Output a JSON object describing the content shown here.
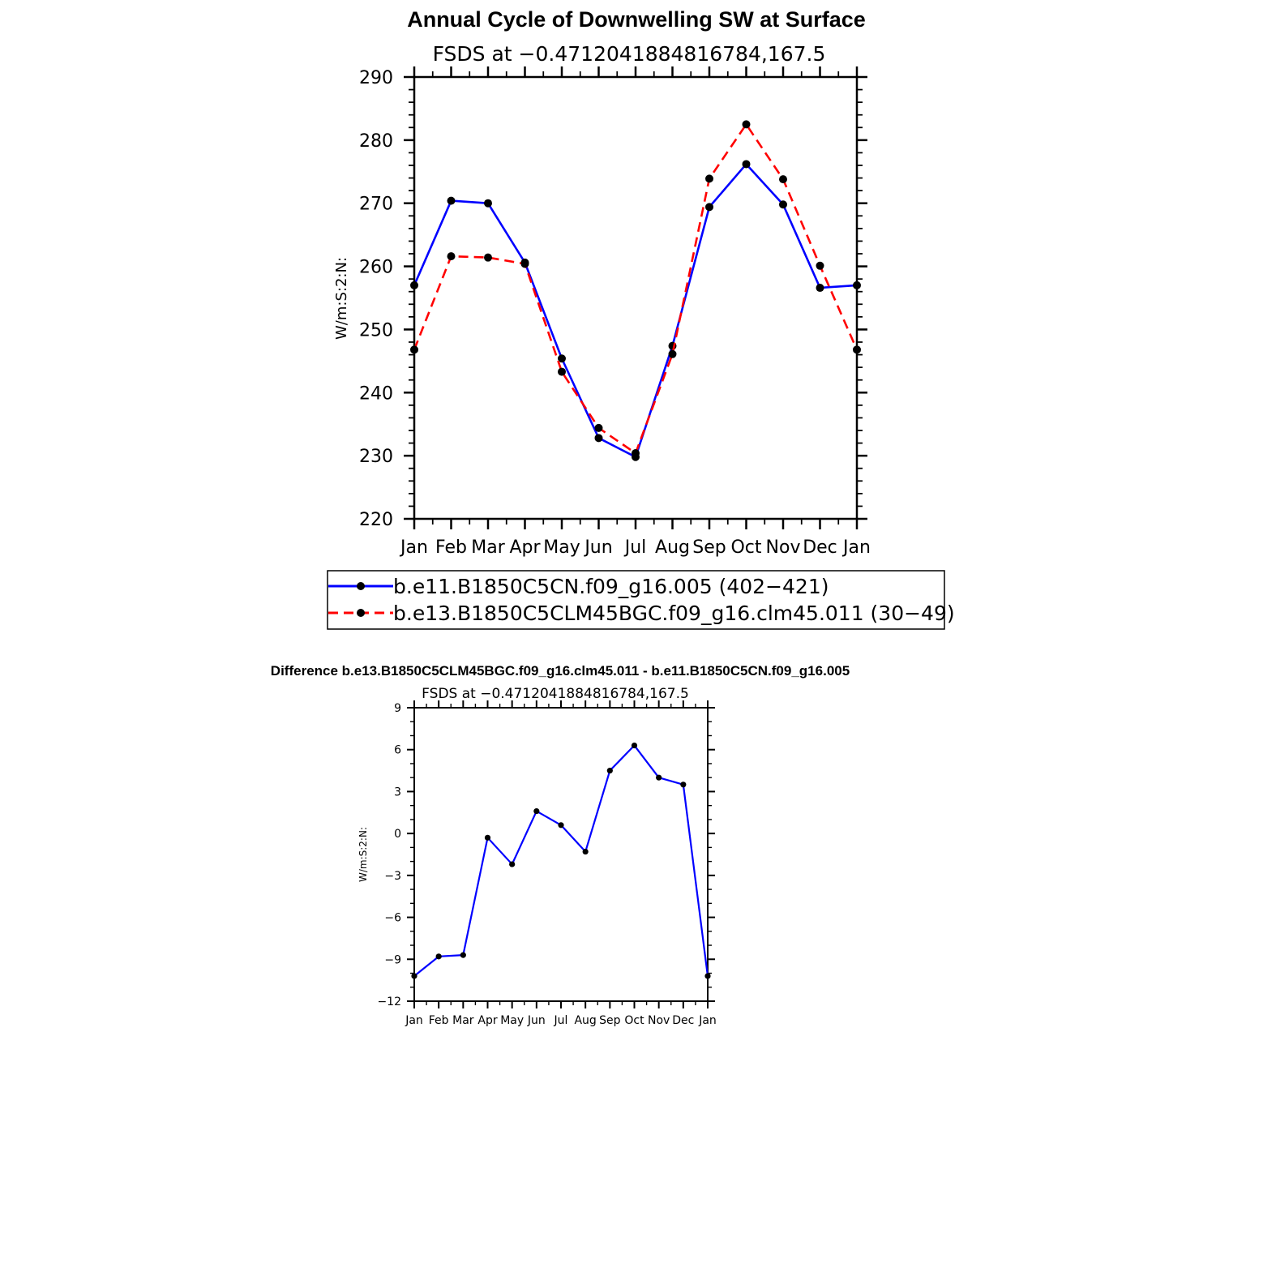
{
  "chart_data": [
    {
      "type": "line",
      "title": "Annual Cycle of Downwelling SW at Surface",
      "subtitle": "FSDS at −0.4712041884816784,167.5",
      "xlabel": "",
      "ylabel": "W/m:S:2:N:",
      "categories": [
        "Jan",
        "Feb",
        "Mar",
        "Apr",
        "May",
        "Jun",
        "Jul",
        "Aug",
        "Sep",
        "Oct",
        "Nov",
        "Dec",
        "Jan"
      ],
      "ylim": [
        220,
        290
      ],
      "yticks": [
        220,
        230,
        240,
        250,
        260,
        270,
        280,
        290
      ],
      "series": [
        {
          "name": "b.e11.B1850C5CN.f09_g16.005 (402−421)",
          "color": "#0000ff",
          "style": "solid",
          "values": [
            257.0,
            270.4,
            270.0,
            260.6,
            245.4,
            232.8,
            229.8,
            247.4,
            269.4,
            276.2,
            269.8,
            256.6,
            257.0
          ]
        },
        {
          "name": "b.e13.B1850C5CLM45BGC.f09_g16.clm45.011 (30−49)",
          "color": "#ff0000",
          "style": "dashed",
          "values": [
            246.8,
            261.6,
            261.4,
            260.4,
            243.3,
            234.4,
            230.4,
            246.1,
            273.9,
            282.5,
            273.8,
            260.1,
            246.8
          ]
        }
      ],
      "legend": "bottom"
    },
    {
      "type": "line",
      "title": "Difference b.e13.B1850C5CLM45BGC.f09_g16.clm45.011 - b.e11.B1850C5CN.f09_g16.005",
      "subtitle": "FSDS at −0.4712041884816784,167.5",
      "xlabel": "",
      "ylabel": "W/m:S:2:N:",
      "categories": [
        "Jan",
        "Feb",
        "Mar",
        "Apr",
        "May",
        "Jun",
        "Jul",
        "Aug",
        "Sep",
        "Oct",
        "Nov",
        "Dec",
        "Jan"
      ],
      "ylim": [
        -12,
        9
      ],
      "yticks": [
        "−12",
        "−9",
        "−6",
        "−3",
        "0",
        "3",
        "6",
        "9"
      ],
      "series": [
        {
          "color": "#0000ff",
          "style": "solid",
          "values": [
            -10.2,
            -8.8,
            -8.7,
            -0.3,
            -2.2,
            1.6,
            0.6,
            -1.3,
            4.5,
            6.3,
            4.0,
            3.5,
            -10.2
          ]
        }
      ]
    }
  ]
}
